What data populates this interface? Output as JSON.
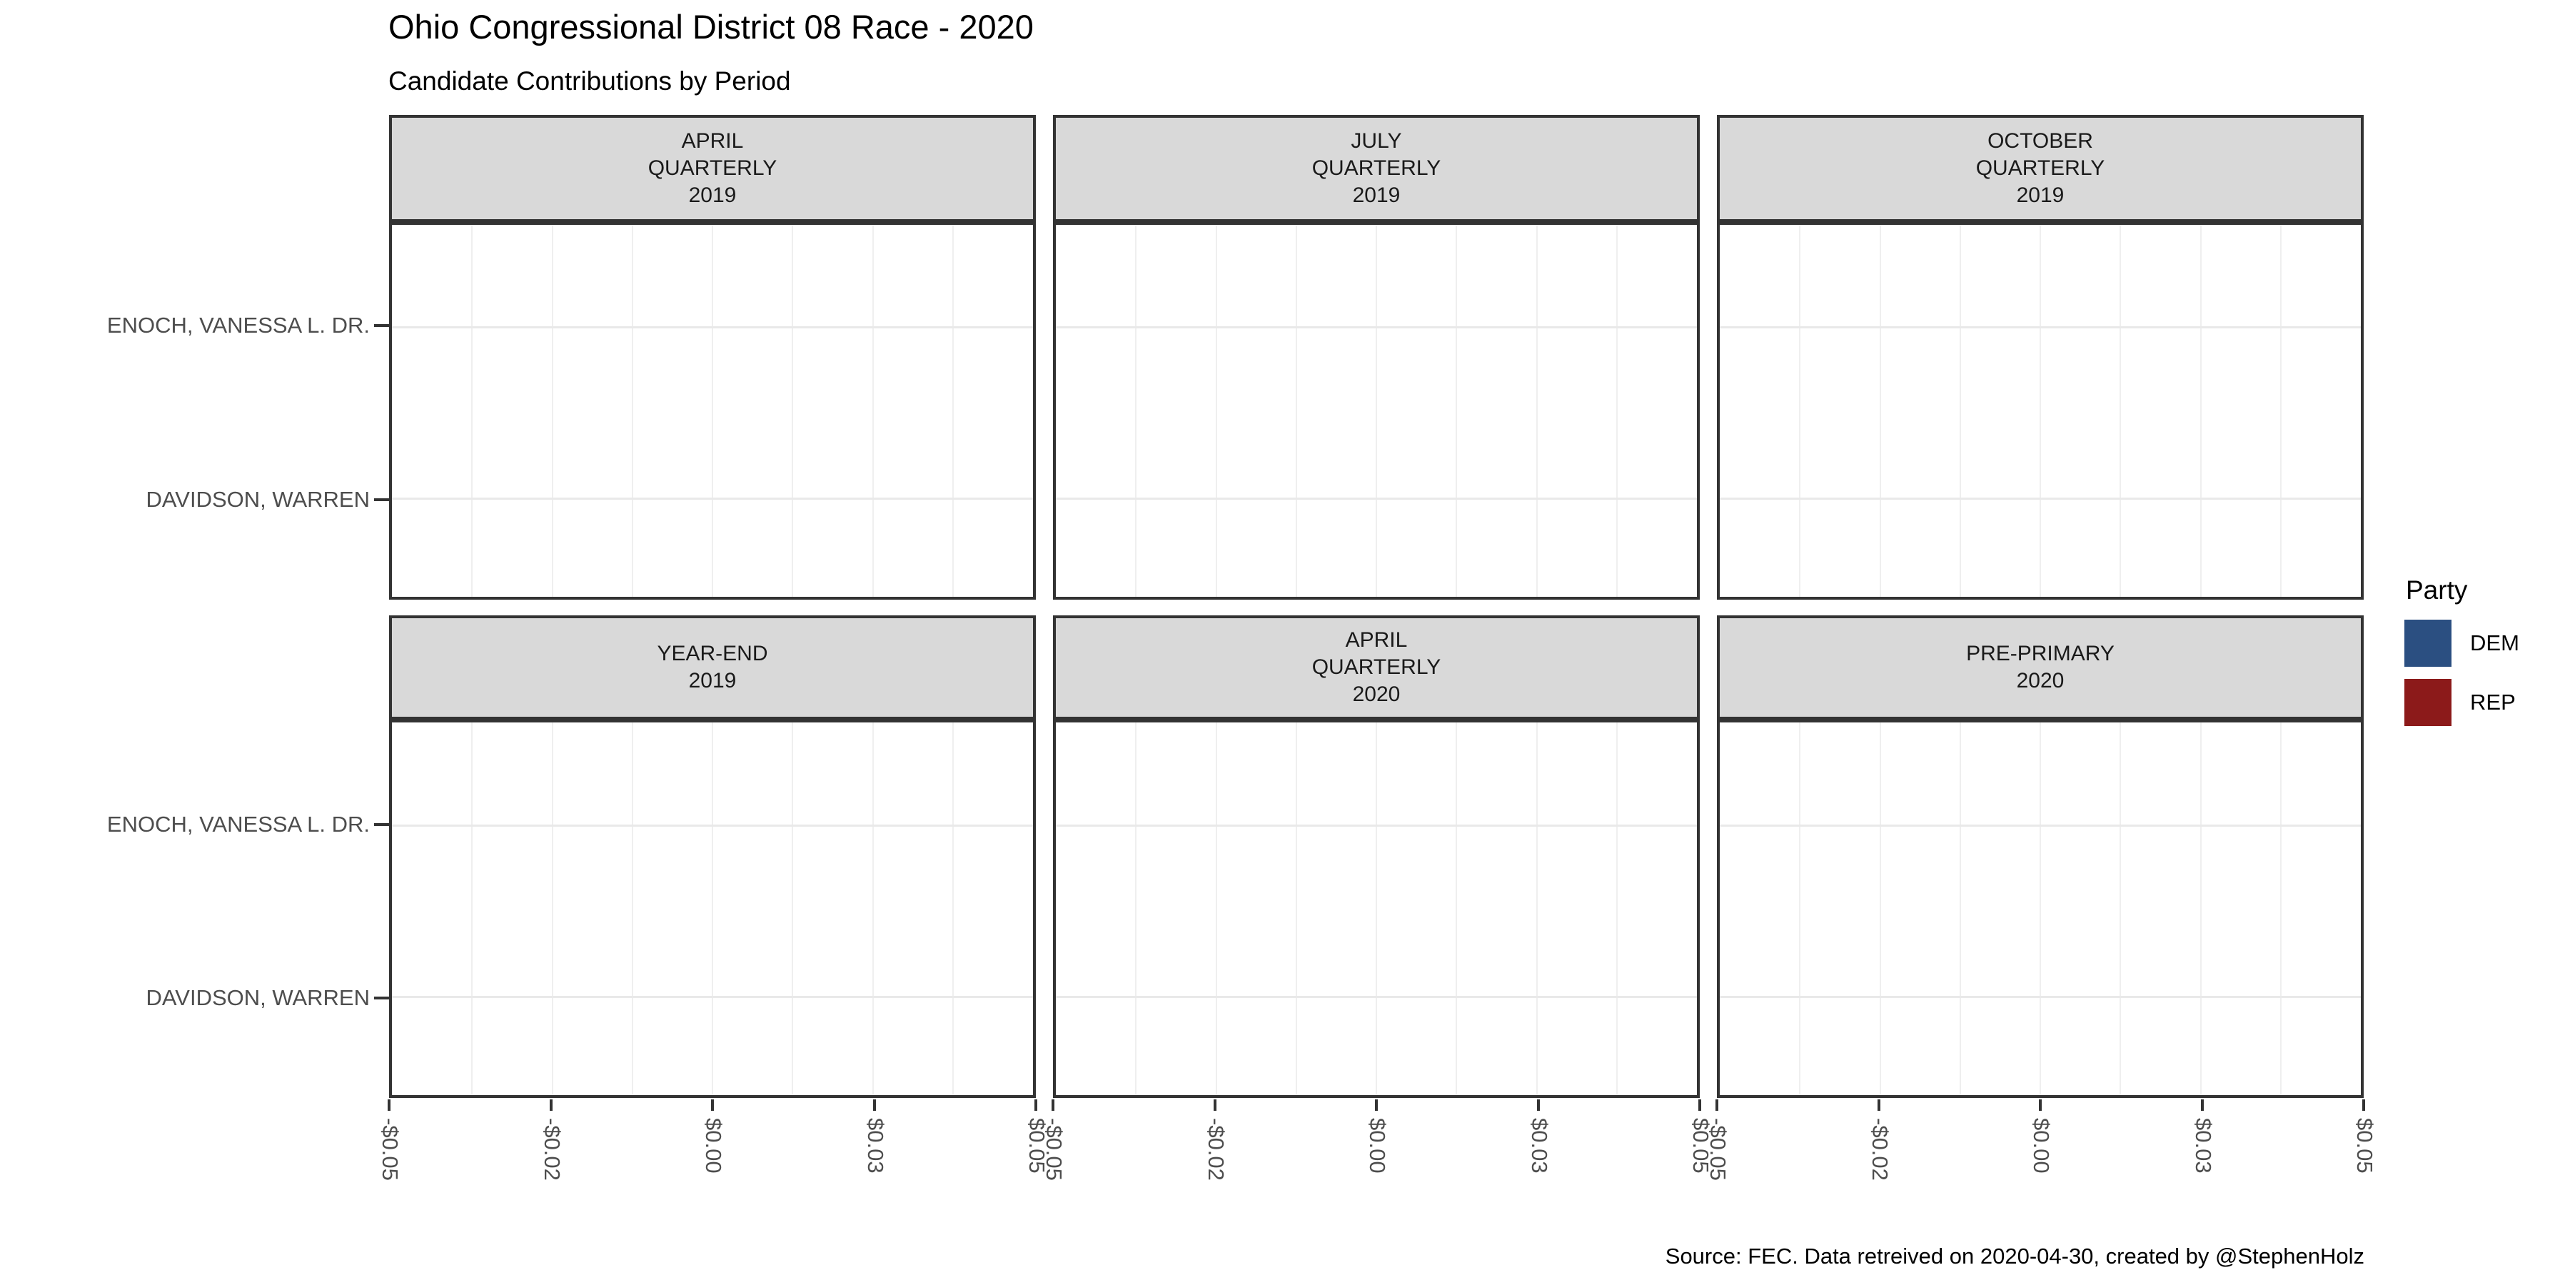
{
  "header": {
    "title": "Ohio Congressional District 08 Race - 2020",
    "subtitle": "Candidate Contributions by Period"
  },
  "caption": "Source: FEC. Data retreived on 2020-04-30, created by @StephenHolz",
  "facets": [
    {
      "label": "APRIL\nQUARTERLY\n2019"
    },
    {
      "label": "JULY\nQUARTERLY\n2019"
    },
    {
      "label": "OCTOBER\nQUARTERLY\n2019"
    },
    {
      "label": "YEAR-END\n2019"
    },
    {
      "label": "APRIL\nQUARTERLY\n2020"
    },
    {
      "label": "PRE-PRIMARY\n2020"
    }
  ],
  "y_axis": {
    "categories": [
      "ENOCH, VANESSA L. DR.",
      "DAVIDSON, WARREN"
    ]
  },
  "x_axis": {
    "ticks": [
      "-$0.05",
      "-$0.02",
      "$0.00",
      "$0.03",
      "$0.05"
    ]
  },
  "legend": {
    "title": "Party",
    "items": [
      {
        "label": "DEM",
        "color": "#2B4F81"
      },
      {
        "label": "REP",
        "color": "#8C1A1A"
      }
    ]
  },
  "colors": {
    "strip_fill": "#D9D9D9",
    "panel_border": "#333333",
    "grid_major": "#E9E9E9",
    "grid_minor": "#EFEFEF",
    "axis_text": "#4D4D4D"
  },
  "chart_data": {
    "type": "bar",
    "orientation": "horizontal",
    "title": "Ohio Congressional District 08 Race - 2020",
    "subtitle": "Candidate Contributions by Period",
    "facets": [
      "APRIL QUARTERLY 2019",
      "JULY QUARTERLY 2019",
      "OCTOBER QUARTERLY 2019",
      "YEAR-END 2019",
      "APRIL QUARTERLY 2020",
      "PRE-PRIMARY 2020"
    ],
    "categories": [
      "ENOCH, VANESSA L. DR.",
      "DAVIDSON, WARREN"
    ],
    "series": [
      {
        "facet": "APRIL QUARTERLY 2019",
        "values": [
          0,
          0
        ]
      },
      {
        "facet": "JULY QUARTERLY 2019",
        "values": [
          0,
          0
        ]
      },
      {
        "facet": "OCTOBER QUARTERLY 2019",
        "values": [
          0,
          0
        ]
      },
      {
        "facet": "YEAR-END 2019",
        "values": [
          0,
          0
        ]
      },
      {
        "facet": "APRIL QUARTERLY 2020",
        "values": [
          0,
          0
        ]
      },
      {
        "facet": "PRE-PRIMARY 2020",
        "values": [
          0,
          0
        ]
      }
    ],
    "xlim": [
      -0.05,
      0.05
    ],
    "x_tick_values": [
      -0.05,
      -0.025,
      0,
      0.025,
      0.05
    ],
    "x_tick_labels": [
      "-$0.05",
      "-$0.02",
      "$0.00",
      "$0.03",
      "$0.05"
    ],
    "xlabel": "",
    "ylabel": "",
    "grid": true,
    "legend": {
      "title": "Party",
      "entries": [
        "DEM",
        "REP"
      ],
      "position": "right"
    }
  }
}
